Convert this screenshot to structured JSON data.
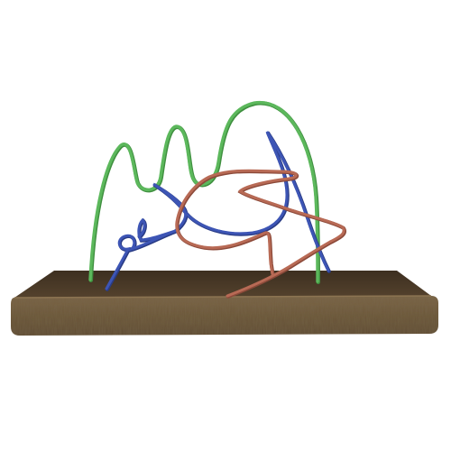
{
  "scene": {
    "background": "#ffffff",
    "base": {
      "top_color": "#4a3a28",
      "front_color": "#7a6446",
      "front_dark": "#5e4b33",
      "edge_highlight": "#8c7452"
    },
    "wires": [
      {
        "name": "green-wire",
        "color": "#5cb85c",
        "shadow": "#3f8f3f"
      },
      {
        "name": "blue-wire",
        "color": "#3d55b5",
        "shadow": "#2a3c85"
      },
      {
        "name": "red-wire",
        "color": "#b86a55",
        "shadow": "#8c4a3a"
      }
    ]
  }
}
